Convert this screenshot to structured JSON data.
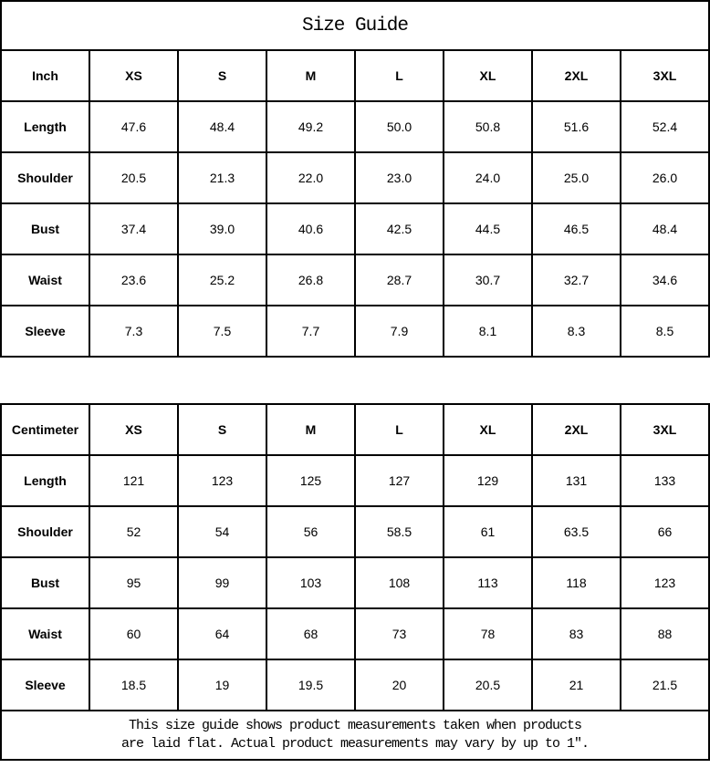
{
  "title": "Size Guide",
  "colors": {
    "border": "#000000",
    "background": "#ffffff",
    "text": "#000000"
  },
  "tables": [
    {
      "unit_label": "Inch",
      "sizes": [
        "XS",
        "S",
        "M",
        "L",
        "XL",
        "2XL",
        "3XL"
      ],
      "rows": [
        {
          "label": "Length",
          "values": [
            "47.6",
            "48.4",
            "49.2",
            "50.0",
            "50.8",
            "51.6",
            "52.4"
          ]
        },
        {
          "label": "Shoulder",
          "values": [
            "20.5",
            "21.3",
            "22.0",
            "23.0",
            "24.0",
            "25.0",
            "26.0"
          ]
        },
        {
          "label": "Bust",
          "values": [
            "37.4",
            "39.0",
            "40.6",
            "42.5",
            "44.5",
            "46.5",
            "48.4"
          ]
        },
        {
          "label": "Waist",
          "values": [
            "23.6",
            "25.2",
            "26.8",
            "28.7",
            "30.7",
            "32.7",
            "34.6"
          ]
        },
        {
          "label": "Sleeve",
          "values": [
            "7.3",
            "7.5",
            "7.7",
            "7.9",
            "8.1",
            "8.3",
            "8.5"
          ]
        }
      ]
    },
    {
      "unit_label": "Centimeter",
      "sizes": [
        "XS",
        "S",
        "M",
        "L",
        "XL",
        "2XL",
        "3XL"
      ],
      "rows": [
        {
          "label": "Length",
          "values": [
            "121",
            "123",
            "125",
            "127",
            "129",
            "131",
            "133"
          ]
        },
        {
          "label": "Shoulder",
          "values": [
            "52",
            "54",
            "56",
            "58.5",
            "61",
            "63.5",
            "66"
          ]
        },
        {
          "label": "Bust",
          "values": [
            "95",
            "99",
            "103",
            "108",
            "113",
            "118",
            "123"
          ]
        },
        {
          "label": "Waist",
          "values": [
            "60",
            "64",
            "68",
            "73",
            "78",
            "83",
            "88"
          ]
        },
        {
          "label": "Sleeve",
          "values": [
            "18.5",
            "19",
            "19.5",
            "20",
            "20.5",
            "21",
            "21.5"
          ]
        }
      ]
    }
  ],
  "footer": {
    "line1": "This size guide shows product measurements taken when products",
    "line2": "are laid flat. Actual product measurements may vary by up to 1″."
  }
}
